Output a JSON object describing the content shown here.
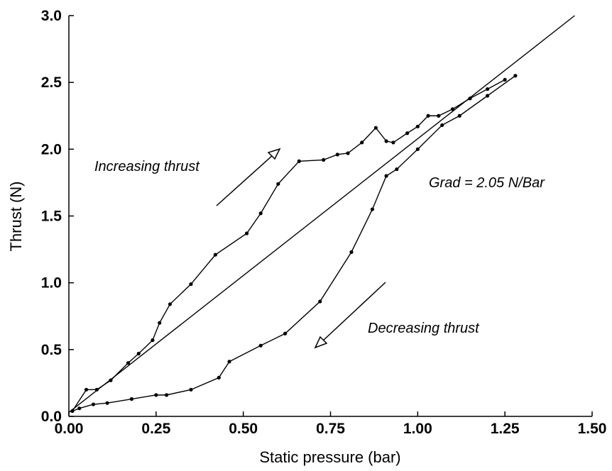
{
  "chart_data": {
    "type": "line",
    "xlabel": "Static pressure (bar)",
    "ylabel": "Thrust (N)",
    "xlim": [
      0,
      1.5
    ],
    "ylim": [
      0,
      3.0
    ],
    "xticks": [
      {
        "value": 0,
        "label": "0.00"
      },
      {
        "value": 0.25,
        "label": "0.25"
      },
      {
        "value": 0.5,
        "label": "0.50"
      },
      {
        "value": 0.75,
        "label": "0.75"
      },
      {
        "value": 1.0,
        "label": "1.00"
      },
      {
        "value": 1.25,
        "label": "1.25"
      },
      {
        "value": 1.5,
        "label": "1.50"
      }
    ],
    "yticks": [
      {
        "value": 0,
        "label": "0.0"
      },
      0.5,
      {
        "value": 1.0,
        "label": "1.0"
      },
      1.5,
      {
        "value": 2.0,
        "label": "2.0"
      },
      2.5,
      {
        "value": 3.0,
        "label": "3.0"
      }
    ],
    "grid": false,
    "annotations": [
      "Increasing thrust",
      "Decreasing thrust",
      "Grad = 2.05 N/Bar"
    ],
    "series": [
      {
        "color": "#000000",
        "markers": true,
        "x": [
          0.01,
          0.05,
          0.08,
          0.12,
          0.17,
          0.2,
          0.24,
          0.26,
          0.29,
          0.35,
          0.42,
          0.51,
          0.55,
          0.6,
          0.66,
          0.73,
          0.77,
          0.8,
          0.84,
          0.88,
          0.91,
          0.93,
          0.97,
          1.0,
          1.03,
          1.06,
          1.1,
          1.15,
          1.2,
          1.25
        ],
        "values": [
          0.04,
          0.2,
          0.2,
          0.27,
          0.4,
          0.47,
          0.57,
          0.7,
          0.84,
          0.99,
          1.21,
          1.37,
          1.52,
          1.74,
          1.91,
          1.92,
          1.96,
          1.97,
          2.05,
          2.16,
          2.06,
          2.05,
          2.12,
          2.17,
          2.25,
          2.25,
          2.3,
          2.38,
          2.45,
          2.52
        ]
      },
      {
        "color": "#000000",
        "markers": true,
        "x": [
          1.28,
          1.2,
          1.12,
          1.07,
          1.0,
          0.94,
          0.91,
          0.87,
          0.81,
          0.72,
          0.62,
          0.55,
          0.46,
          0.43,
          0.35,
          0.28,
          0.25,
          0.18,
          0.11,
          0.07,
          0.03,
          0.01
        ],
        "values": [
          2.55,
          2.4,
          2.25,
          2.18,
          2.0,
          1.85,
          1.8,
          1.55,
          1.23,
          0.86,
          0.62,
          0.53,
          0.41,
          0.29,
          0.2,
          0.16,
          0.16,
          0.13,
          0.1,
          0.09,
          0.06,
          0.04
        ]
      },
      {
        "color": "#000000",
        "markers": false,
        "x": [
          0.0,
          1.45
        ],
        "values": [
          0.03,
          3.0
        ]
      }
    ]
  }
}
